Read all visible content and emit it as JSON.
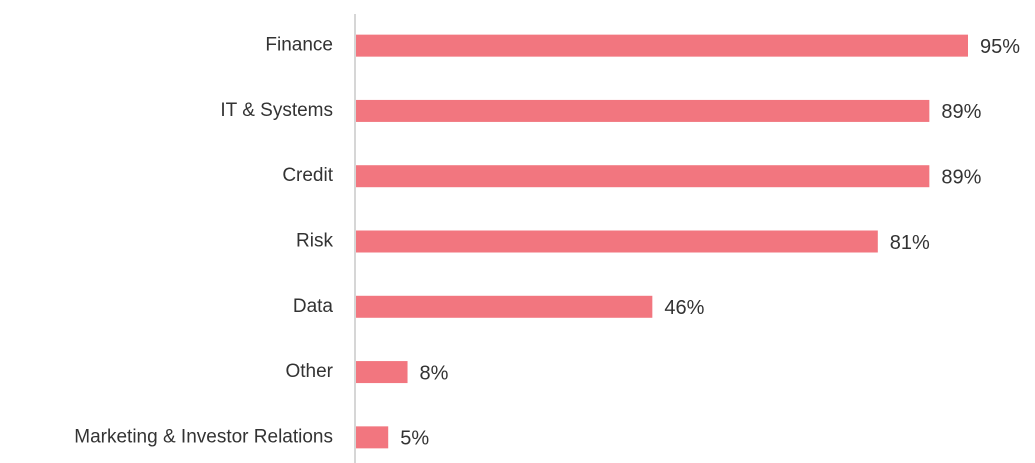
{
  "chart_data": {
    "type": "bar",
    "horizontal": true,
    "color": "#f2767f",
    "categories": [
      "Finance",
      "IT & Systems",
      "Credit",
      "Risk",
      "Data",
      "Other",
      "Marketing & Investor Relations"
    ],
    "values": [
      95,
      89,
      89,
      81,
      46,
      8,
      5
    ],
    "value_labels": [
      "95%",
      "89%",
      "89%",
      "81%",
      "46%",
      "8%",
      "5%"
    ]
  }
}
